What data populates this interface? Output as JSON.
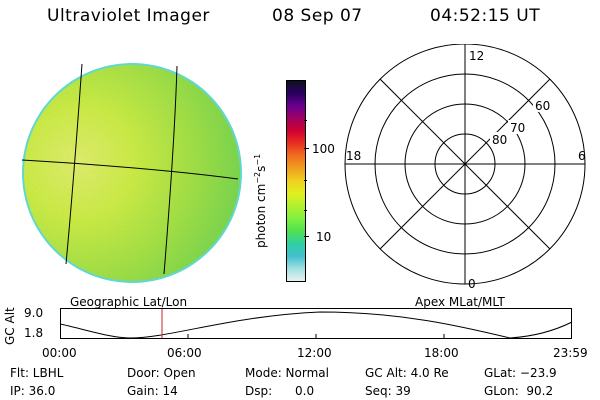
{
  "header": {
    "title": "Ultraviolet Imager",
    "date": "08 Sep 07",
    "time": "04:52:15 UT"
  },
  "colorbar": {
    "unit_label": "photon cm-2s-1",
    "ticks": [
      "100",
      "10"
    ],
    "colors": [
      "#101020",
      "#2a0060",
      "#6a0090",
      "#a00060",
      "#d00030",
      "#e83020",
      "#f07020",
      "#f0a020",
      "#f0d020",
      "#e0f020",
      "#b0f030",
      "#80f040",
      "#50e050",
      "#30d0a0",
      "#40c0d0",
      "#a0e0e0",
      "#e8f0f0"
    ]
  },
  "polar_plot": {
    "lat_labels": [
      "80",
      "70",
      "60"
    ],
    "mlt_labels": {
      "top": "12",
      "left": "18",
      "right": "6",
      "bottom": "0"
    }
  },
  "labels": {
    "geo": "Geographic Lat/Lon",
    "apex": "Apex MLat/MLT"
  },
  "altitude_panel": {
    "axis_label": "GC Alt",
    "y_ticks": [
      "9.0",
      "1.8"
    ],
    "x_ticks": [
      "00:00",
      "06:00",
      "12:00",
      "18:00",
      "23:59"
    ]
  },
  "info": {
    "filter": "Flt: LBHL",
    "ip": "IP: 36.0",
    "door": "Door: Open",
    "gain": "Gain: 14",
    "mode": "Mode: Normal",
    "dsp": "Dsp:      0.0",
    "gc_alt": "GC Alt: 4.0 Re",
    "seq": "Seq: 39",
    "glat": "GLat: −23.9",
    "glon": "GLon:  90.2"
  }
}
